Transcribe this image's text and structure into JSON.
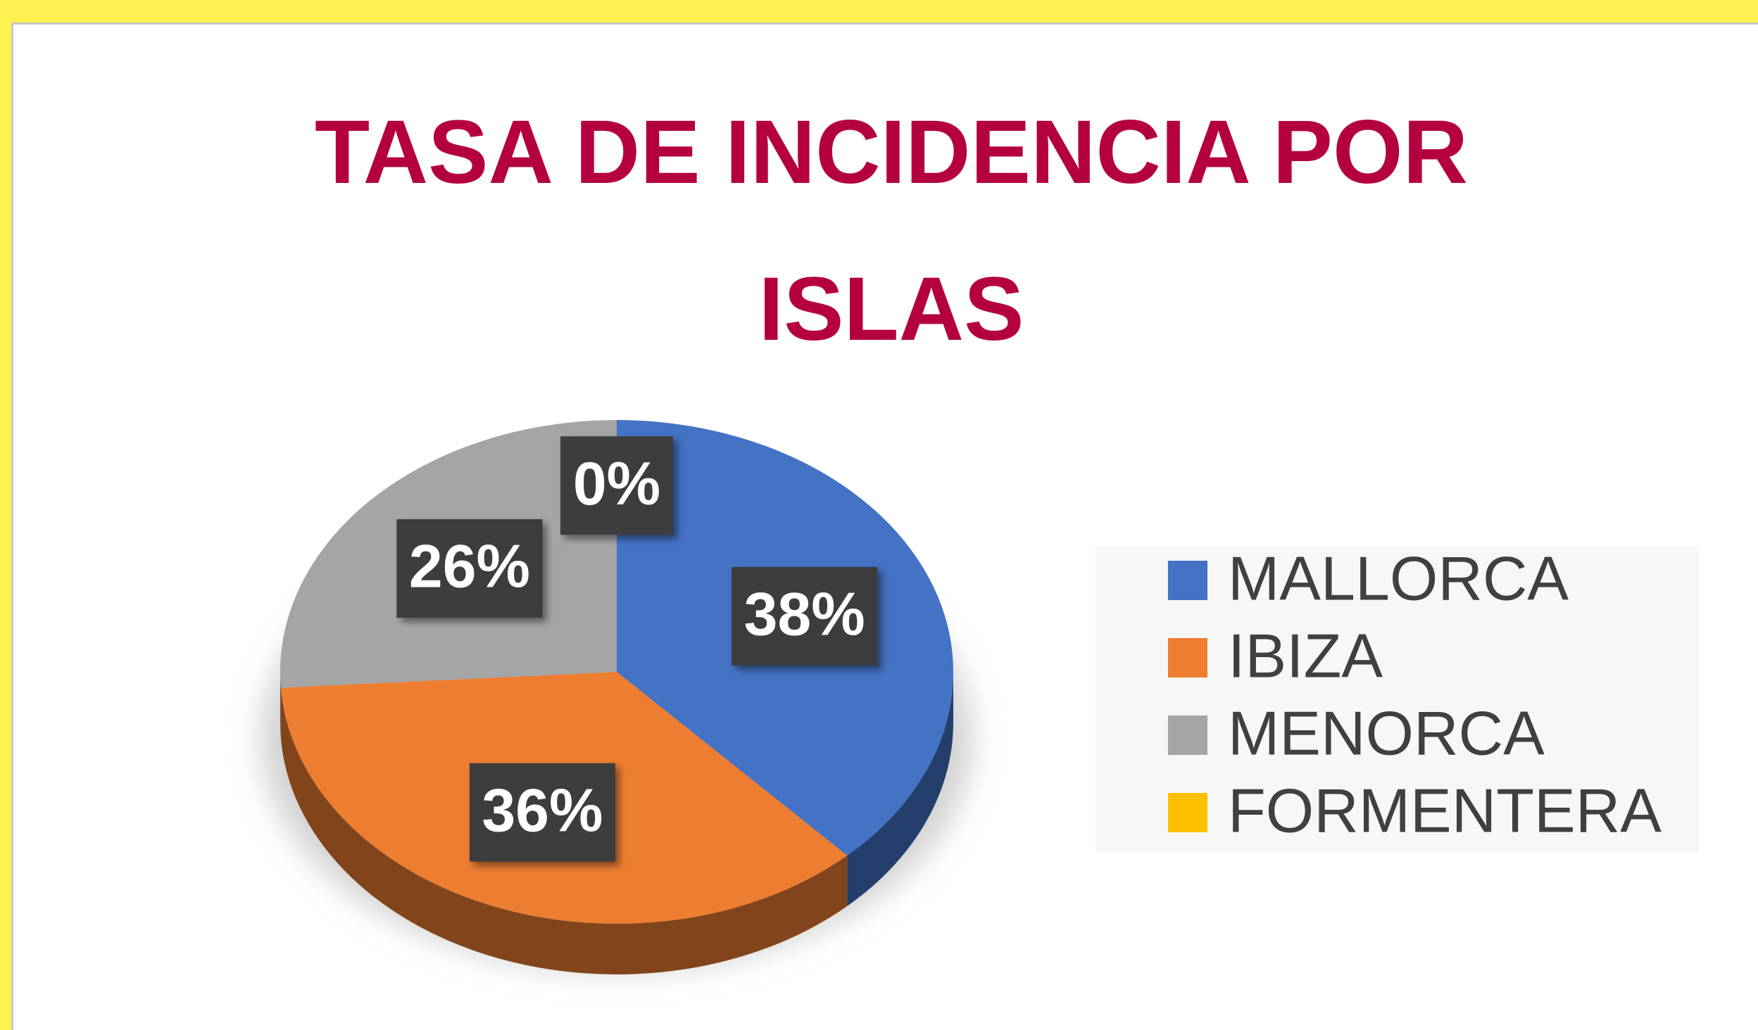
{
  "chart_data": {
    "type": "pie",
    "title": "TASA DE INCIDENCIA POR ISLAS",
    "categories": [
      "MALLORCA",
      "IBIZA",
      "MENORCA",
      "FORMENTERA"
    ],
    "values": [
      38,
      36,
      26,
      0
    ],
    "value_labels": [
      "38%",
      "36%",
      "26%",
      "0%"
    ],
    "colors": [
      "#4472c4",
      "#ed7d31",
      "#a5a5a5",
      "#ffc000"
    ],
    "legend": "right"
  }
}
